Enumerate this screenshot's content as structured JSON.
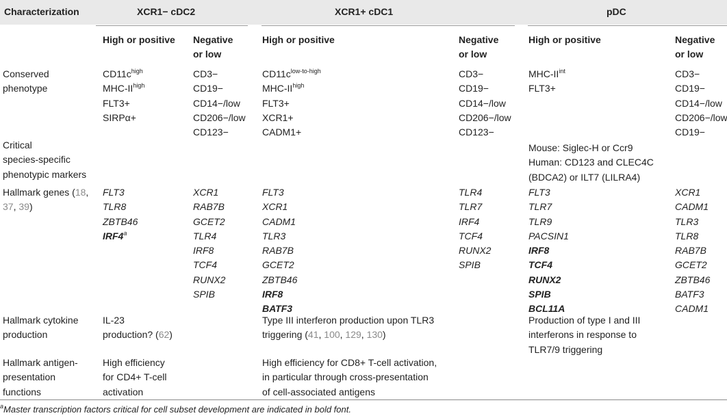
{
  "headers": {
    "characterization": "Characterization",
    "cdc2": "XCR1− cDC2",
    "cdc1": "XCR1+ cDC1",
    "pdc": "pDC"
  },
  "subheaders": {
    "high_or_positive": "High or positive",
    "negative_or_low_line1": "Negative",
    "negative_or_low_line2": "or low"
  },
  "rows": {
    "conserved": {
      "label": [
        "Conserved",
        "phenotype"
      ],
      "cdc2_high": [
        "CD11c",
        "MHC-II",
        "FLT3+",
        "SIRPα+"
      ],
      "cdc2_high_sup": [
        "high",
        "high"
      ],
      "cdc2_neg": [
        "CD3−",
        "CD19−",
        "CD14−/low",
        "CD206−/low",
        "CD123−"
      ],
      "cdc1_high": [
        "CD11c",
        "MHC-II",
        "FLT3+",
        "XCR1+",
        "CADM1+"
      ],
      "cdc1_high_sup": [
        "low-to-high",
        "high"
      ],
      "cdc1_neg": [
        "CD3−",
        "CD19−",
        "CD14−/low",
        "CD206−/low",
        "CD123−"
      ],
      "pdc_high": [
        "MHC-II",
        "FLT3+"
      ],
      "pdc_high_sup": [
        "int"
      ],
      "pdc_neg": [
        "CD3−",
        "CD19−",
        "CD14−/low",
        "CD206−/low",
        "CD19−"
      ]
    },
    "species": {
      "label": [
        "Critical",
        "species-specific",
        "phenotypic markers"
      ],
      "pdc": [
        "Mouse: Siglec-H or Ccr9",
        "Human: CD123 and CLEC4C",
        "(BDCA2) or ILT7 (LILRA4)"
      ]
    },
    "genes": {
      "label_line1_text": "Hallmark genes (",
      "label_line1_ref": "18",
      "label_line1_end": ",",
      "label_line2_ref1": "37",
      "label_line2_sep": ", ",
      "label_line2_ref2": "39",
      "label_line2_end": ")",
      "cdc2_high": [
        "FLT3",
        "TLR8",
        "ZBTB46",
        "IRF4"
      ],
      "cdc2_high_note": "a",
      "cdc2_neg": [
        "XCR1",
        "RAB7B",
        "GCET2",
        "TLR4",
        "IRF8",
        "TCF4",
        "RUNX2",
        "SPIB"
      ],
      "cdc1_high": [
        "FLT3",
        "XCR1",
        "CADM1",
        "TLR3",
        "RAB7B",
        "GCET2",
        "ZBTB46",
        "IRF8",
        "BATF3"
      ],
      "cdc1_neg": [
        "TLR4",
        "TLR7",
        "IRF4",
        "TCF4",
        "RUNX2",
        "SPIB"
      ],
      "pdc_high": [
        "FLT3",
        "TLR7",
        "TLR9",
        "PACSIN1",
        "IRF8",
        "TCF4",
        "RUNX2",
        "SPIB",
        "BCL11A"
      ],
      "pdc_neg": [
        "XCR1",
        "CADM1",
        "TLR3",
        "TLR8",
        "RAB7B",
        "GCET2",
        "ZBTB46",
        "BATF3",
        "CADM1"
      ]
    },
    "cytokine": {
      "label": [
        "Hallmark cytokine",
        "production"
      ],
      "cdc2_line1": "IL-23",
      "cdc2_line2_text": "production? (",
      "cdc2_line2_ref": "62",
      "cdc2_line2_end": ")",
      "cdc1_line1": "Type III interferon production upon TLR3",
      "cdc1_line2_text": "triggering (",
      "cdc1_refs": [
        "41",
        "100",
        "129",
        "130"
      ],
      "cdc1_line2_end": ")",
      "pdc": [
        "Production of type I and III",
        "interferons in response to",
        "TLR7/9 triggering"
      ]
    },
    "antigen": {
      "label": [
        "Hallmark antigen-",
        "presentation",
        "functions"
      ],
      "cdc2": [
        "High efficiency",
        "for CD4+ T-cell",
        "activation"
      ],
      "cdc1": [
        "High efficiency for CD8+ T-cell activation,",
        "in particular through cross-presentation",
        "of cell-associated antigens"
      ]
    }
  },
  "footnote": {
    "mark": "a",
    "text": "Master transcription factors critical for cell subset development are indicated in bold font."
  }
}
